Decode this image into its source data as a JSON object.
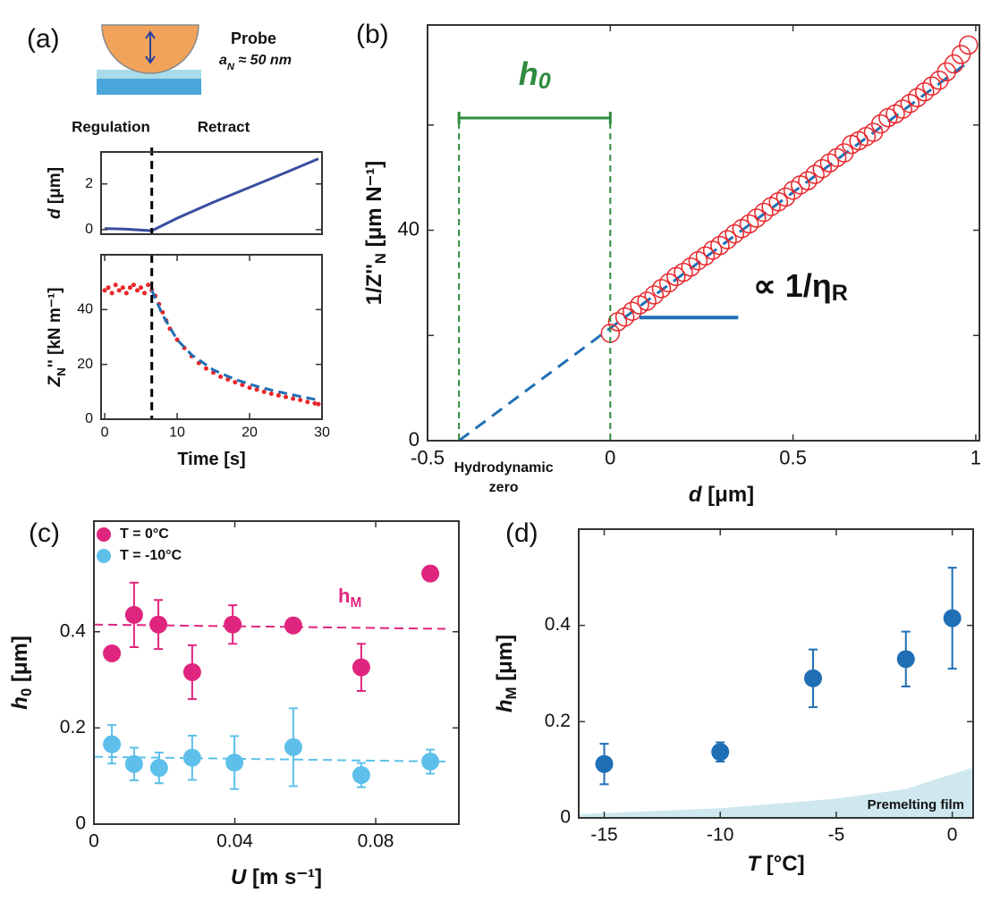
{
  "chart_data": [
    {
      "type": "line",
      "panel": "(a)",
      "probe_label": "Probe",
      "probe_size": [
        {
          "text": "a"
        },
        {
          "text": "N",
          "sub": true
        },
        {
          "text": " ≈ 50 nm"
        }
      ],
      "phases": [
        "Regulation",
        "Retract"
      ],
      "ylabel": [
        {
          "text": "d",
          "italic": true
        },
        {
          "text": " [μm]"
        }
      ],
      "xlim": [
        -0.5,
        30
      ],
      "ylim": [
        -0.2,
        3.4
      ],
      "yticks": [
        0,
        2
      ],
      "vline": 6.5,
      "series": [
        {
          "color": "#3a4ea0",
          "style": "line",
          "x": [
            0,
            3,
            6.5,
            10,
            15,
            20,
            25,
            29.5
          ],
          "values": [
            0.05,
            0.02,
            -0.05,
            0.5,
            1.2,
            1.85,
            2.5,
            3.1
          ]
        }
      ]
    },
    {
      "type": "line",
      "ylabel": [
        {
          "text": "Z",
          "italic": true
        },
        {
          "text": "N",
          "sub": true
        },
        {
          "text": "'' [kN m⁻¹]"
        }
      ],
      "xlabel": [
        {
          "text": "Time [s]"
        }
      ],
      "xlim": [
        -0.5,
        30
      ],
      "ylim": [
        0,
        60
      ],
      "xticks": [
        0,
        10,
        20,
        30
      ],
      "yticks": [
        0,
        20,
        40
      ],
      "vline": 6.5,
      "series": [
        {
          "color": "#e8262a",
          "style": "markers",
          "x": [
            0,
            0.5,
            1,
            1.5,
            2,
            2.5,
            3,
            3.5,
            4,
            4.5,
            5,
            5.5,
            6,
            6.5,
            7,
            7.5,
            8,
            8.5,
            9,
            10,
            11,
            12,
            13,
            14,
            15,
            16,
            17,
            18,
            19,
            20,
            21,
            22,
            23,
            24,
            25,
            26,
            27,
            28,
            29,
            29.5
          ],
          "values": [
            47,
            48,
            46,
            49,
            47,
            48,
            46,
            48,
            49,
            47,
            48,
            46,
            49,
            47,
            45,
            42,
            39,
            36,
            33,
            29,
            26,
            23,
            20.5,
            18.5,
            17,
            15.5,
            14.5,
            13.5,
            12.5,
            11.5,
            10.8,
            10,
            9.3,
            8.7,
            8.1,
            7.5,
            7,
            6.3,
            5.8,
            5.5
          ]
        },
        {
          "color": "#1f6fb5",
          "style": "dashed",
          "x": [
            6.5,
            8,
            10,
            12,
            15,
            18,
            21,
            24,
            27,
            29.5
          ],
          "values": [
            47,
            38,
            29,
            23.5,
            18,
            14.5,
            12,
            10,
            8.3,
            7
          ]
        }
      ]
    },
    {
      "type": "scatter",
      "panel": "(b)",
      "ylabel": [
        {
          "text": "1/Z''"
        },
        {
          "text": "N",
          "sub": true
        },
        {
          "text": " [μm N⁻¹]"
        }
      ],
      "xlabel": [
        {
          "text": "d",
          "italic": true
        },
        {
          "text": " [μm]"
        }
      ],
      "xlim": [
        -0.5,
        1.01
      ],
      "ylim": [
        0,
        79
      ],
      "xticks": [
        -0.5,
        0,
        0.5,
        1
      ],
      "yticks": [
        0,
        40
      ],
      "minor_yticks": [
        20,
        60
      ],
      "h0_label": [
        {
          "text": "h"
        },
        {
          "text": "0",
          "sub": true
        }
      ],
      "h0_bracket": [
        -0.414,
        0
      ],
      "zero_label": [
        "Hydrodynamic",
        "zero"
      ],
      "slope_label": [
        {
          "text": "∝ 1/η"
        },
        {
          "text": "R",
          "sub": true
        }
      ],
      "slope_marker": {
        "x": [
          0.08,
          0.35
        ],
        "y": [
          23.4,
          23.4
        ]
      },
      "fit": {
        "x": [
          -0.414,
          0.98
        ],
        "y": [
          0,
          72
        ]
      },
      "series": [
        {
          "color": "#e8262a",
          "style": "markers",
          "marker": "open",
          "x": [
            0,
            0.02,
            0.04,
            0.06,
            0.08,
            0.1,
            0.12,
            0.14,
            0.16,
            0.18,
            0.2,
            0.22,
            0.24,
            0.26,
            0.28,
            0.3,
            0.32,
            0.34,
            0.36,
            0.38,
            0.4,
            0.42,
            0.44,
            0.46,
            0.48,
            0.5,
            0.52,
            0.54,
            0.56,
            0.58,
            0.6,
            0.62,
            0.64,
            0.66,
            0.68,
            0.7,
            0.72,
            0.74,
            0.76,
            0.78,
            0.8,
            0.82,
            0.84,
            0.86,
            0.88,
            0.9,
            0.92,
            0.94,
            0.96,
            0.98
          ],
          "values": [
            20.4,
            22.6,
            23.5,
            24.6,
            25.8,
            26.5,
            27.7,
            28.9,
            30.0,
            31.2,
            32.0,
            33.0,
            34.2,
            35.1,
            36.2,
            37.1,
            38.2,
            39.3,
            40.3,
            41.2,
            42.3,
            43.4,
            44.5,
            45.4,
            46.3,
            47.6,
            48.6,
            49.4,
            50.6,
            51.7,
            52.8,
            53.8,
            54.7,
            56.3,
            57.0,
            57.8,
            58.6,
            60.2,
            61.4,
            62.1,
            63.0,
            64.1,
            65.2,
            66.3,
            67.4,
            68.5,
            70.1,
            71.6,
            73.4,
            75.2
          ]
        }
      ]
    },
    {
      "type": "scatter",
      "panel": "(c)",
      "ylabel": [
        {
          "text": "h",
          "italic": true
        },
        {
          "text": "0",
          "sub": true
        },
        {
          "text": " [μm]"
        }
      ],
      "xlabel": [
        {
          "text": "U",
          "italic": true
        },
        {
          "text": " [m s⁻¹]"
        }
      ],
      "annotation": [
        {
          "text": "h"
        },
        {
          "text": "M",
          "sub": true
        }
      ],
      "xlim": [
        0,
        0.1036
      ],
      "ylim": [
        0,
        0.63
      ],
      "xticks": [
        0,
        0.04,
        0.08
      ],
      "yticks": [
        0,
        0.2,
        0.4
      ],
      "series": [
        {
          "name": "T = 0°C",
          "color": "#e0257f",
          "style": "markers",
          "marker": "filled",
          "x": [
            0.0051,
            0.0114,
            0.0183,
            0.0279,
            0.0394,
            0.0566,
            0.0759,
            0.0955
          ],
          "values": [
            0.355,
            0.435,
            0.415,
            0.316,
            0.415,
            0.413,
            0.326,
            0.521
          ],
          "errors": [
            null,
            0.067,
            0.051,
            0.056,
            0.04,
            null,
            0.049,
            null
          ],
          "fit": {
            "x": [
              0,
              0.0998
            ],
            "y": [
              0.415,
              0.406
            ]
          }
        },
        {
          "name": "T = -10°C",
          "color": "#5ec0ea",
          "style": "markers",
          "marker": "filled",
          "x": [
            0.0051,
            0.0114,
            0.0185,
            0.0279,
            0.0399,
            0.0566,
            0.0759,
            0.0955
          ],
          "values": [
            0.166,
            0.125,
            0.117,
            0.138,
            0.128,
            0.16,
            0.102,
            0.13
          ],
          "errors": [
            0.04,
            0.034,
            0.032,
            0.046,
            0.055,
            0.081,
            0.025,
            0.025
          ],
          "fit": {
            "x": [
              0,
              0.0998
            ],
            "y": [
              0.14,
              0.13
            ]
          }
        }
      ]
    },
    {
      "type": "scatter",
      "panel": "(d)",
      "ylabel": [
        {
          "text": "h",
          "italic": true
        },
        {
          "text": "M",
          "sub": true
        },
        {
          "text": " [μm]"
        }
      ],
      "xlabel": [
        {
          "text": "T",
          "italic": true
        },
        {
          "text": " [°C]"
        }
      ],
      "xlim": [
        -16.1,
        0.9
      ],
      "ylim": [
        0,
        0.6
      ],
      "xticks": [
        -15,
        -10,
        -5,
        0
      ],
      "yticks": [
        0,
        0.2,
        0.4
      ],
      "series": [
        {
          "name": "Premelting film",
          "color": "#cfe8f0",
          "style": "area",
          "x": [
            -16.1,
            -10,
            -5,
            -2,
            0.9
          ],
          "values": [
            0.008,
            0.02,
            0.04,
            0.06,
            0.105
          ]
        },
        {
          "color": "#1f6fb5",
          "style": "markers",
          "marker": "filled",
          "x": [
            -15,
            -10,
            -6,
            -2,
            0
          ],
          "values": [
            0.112,
            0.137,
            0.29,
            0.33,
            0.415
          ],
          "errors": [
            0.042,
            0.02,
            0.06,
            0.057,
            0.105
          ]
        }
      ]
    }
  ]
}
